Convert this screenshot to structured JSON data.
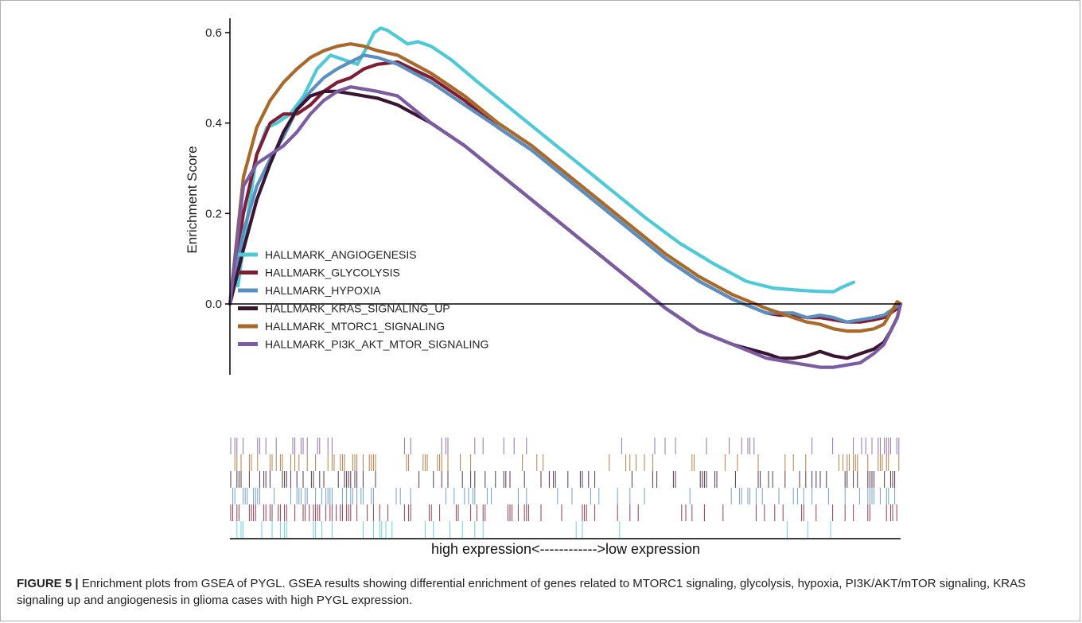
{
  "figure": {
    "caption_label": "FIGURE 5 |",
    "caption_text": " Enrichment plots from GSEA of PYGL. GSEA results showing differential enrichment of genes related to MTORC1 signaling, glycolysis, hypoxia, PI3K/AKT/mTOR signaling, KRAS signaling up and angiogenesis in glioma cases with high PYGL expression."
  },
  "chart_data": {
    "type": "line",
    "ylabel": "Enrichment Score",
    "xlabel": "high expression<------------>low expression",
    "ylim": [
      -0.15,
      0.62
    ],
    "yticks": [
      0.0,
      0.2,
      0.4,
      0.6
    ],
    "ytick_labels": [
      "0.0",
      "0.2",
      "0.4",
      "0.6"
    ],
    "xlim": [
      0,
      1
    ],
    "grid": false,
    "legend_position": "left",
    "series": [
      {
        "name": "HALLMARK_ANGIOGENESIS",
        "color": "#4ec9d6",
        "x": [
          0.012,
          0.025,
          0.04,
          0.055,
          0.07,
          0.09,
          0.11,
          0.13,
          0.15,
          0.17,
          0.19,
          0.205,
          0.215,
          0.225,
          0.235,
          0.25,
          0.265,
          0.28,
          0.3,
          0.33,
          0.37,
          0.42,
          0.47,
          0.52,
          0.57,
          0.62,
          0.67,
          0.72,
          0.77,
          0.81,
          0.85,
          0.875,
          0.9,
          0.91,
          0.93
        ],
        "y": [
          0.04,
          0.18,
          0.33,
          0.39,
          0.4,
          0.42,
          0.46,
          0.52,
          0.55,
          0.54,
          0.53,
          0.57,
          0.6,
          0.61,
          0.605,
          0.59,
          0.575,
          0.58,
          0.57,
          0.54,
          0.49,
          0.43,
          0.37,
          0.31,
          0.25,
          0.19,
          0.135,
          0.09,
          0.05,
          0.035,
          0.03,
          0.028,
          0.027,
          0.035,
          0.048
        ]
      },
      {
        "name": "HALLMARK_GLYCOLYSIS",
        "color": "#7f1d34",
        "x": [
          0.0,
          0.02,
          0.04,
          0.06,
          0.08,
          0.1,
          0.12,
          0.14,
          0.16,
          0.18,
          0.2,
          0.22,
          0.25,
          0.3,
          0.35,
          0.4,
          0.45,
          0.5,
          0.55,
          0.6,
          0.65,
          0.7,
          0.75,
          0.8,
          0.82,
          0.84,
          0.86,
          0.88,
          0.9,
          0.92,
          0.94,
          0.96,
          0.975,
          0.985,
          0.995,
          1.0
        ],
        "y": [
          0.0,
          0.2,
          0.33,
          0.4,
          0.42,
          0.42,
          0.44,
          0.47,
          0.49,
          0.5,
          0.52,
          0.53,
          0.535,
          0.5,
          0.45,
          0.39,
          0.34,
          0.28,
          0.22,
          0.16,
          0.1,
          0.05,
          0.01,
          -0.02,
          -0.025,
          -0.025,
          -0.03,
          -0.03,
          -0.035,
          -0.04,
          -0.04,
          -0.035,
          -0.03,
          -0.02,
          -0.01,
          0.0
        ]
      },
      {
        "name": "HALLMARK_HYPOXIA",
        "color": "#5a8fbf",
        "x": [
          0.0,
          0.02,
          0.04,
          0.06,
          0.08,
          0.1,
          0.12,
          0.14,
          0.16,
          0.18,
          0.2,
          0.22,
          0.25,
          0.3,
          0.35,
          0.4,
          0.45,
          0.5,
          0.55,
          0.6,
          0.65,
          0.7,
          0.75,
          0.8,
          0.82,
          0.84,
          0.86,
          0.88,
          0.9,
          0.92,
          0.94,
          0.96,
          0.975,
          0.985,
          0.995,
          1.0
        ],
        "y": [
          0.0,
          0.16,
          0.26,
          0.32,
          0.37,
          0.43,
          0.47,
          0.5,
          0.52,
          0.535,
          0.55,
          0.545,
          0.53,
          0.49,
          0.44,
          0.39,
          0.34,
          0.28,
          0.22,
          0.16,
          0.1,
          0.05,
          0.01,
          -0.02,
          -0.02,
          -0.02,
          -0.03,
          -0.025,
          -0.03,
          -0.04,
          -0.035,
          -0.03,
          -0.025,
          -0.015,
          -0.005,
          0.0
        ]
      },
      {
        "name": "HALLMARK_KRAS_SIGNALING_UP",
        "color": "#3a1530",
        "x": [
          0.0,
          0.02,
          0.04,
          0.06,
          0.08,
          0.1,
          0.12,
          0.14,
          0.16,
          0.18,
          0.2,
          0.22,
          0.25,
          0.3,
          0.35,
          0.4,
          0.45,
          0.5,
          0.55,
          0.6,
          0.65,
          0.7,
          0.75,
          0.8,
          0.82,
          0.84,
          0.86,
          0.88,
          0.9,
          0.92,
          0.94,
          0.96,
          0.975,
          0.985,
          0.995,
          1.0
        ],
        "y": [
          0.0,
          0.12,
          0.23,
          0.31,
          0.38,
          0.43,
          0.46,
          0.47,
          0.47,
          0.465,
          0.46,
          0.455,
          0.44,
          0.4,
          0.35,
          0.29,
          0.23,
          0.17,
          0.11,
          0.05,
          -0.01,
          -0.06,
          -0.09,
          -0.11,
          -0.12,
          -0.12,
          -0.115,
          -0.105,
          -0.115,
          -0.12,
          -0.11,
          -0.1,
          -0.085,
          -0.06,
          -0.03,
          0.0
        ]
      },
      {
        "name": "HALLMARK_MTORC1_SIGNALING",
        "color": "#a8692a",
        "x": [
          0.0,
          0.02,
          0.04,
          0.06,
          0.08,
          0.1,
          0.12,
          0.14,
          0.16,
          0.18,
          0.2,
          0.22,
          0.25,
          0.3,
          0.35,
          0.4,
          0.45,
          0.5,
          0.55,
          0.6,
          0.65,
          0.7,
          0.75,
          0.8,
          0.82,
          0.84,
          0.86,
          0.88,
          0.9,
          0.92,
          0.94,
          0.96,
          0.975,
          0.985,
          0.995,
          1.0
        ],
        "y": [
          0.0,
          0.28,
          0.39,
          0.45,
          0.49,
          0.52,
          0.545,
          0.56,
          0.57,
          0.575,
          0.57,
          0.56,
          0.55,
          0.51,
          0.46,
          0.4,
          0.35,
          0.29,
          0.23,
          0.17,
          0.11,
          0.06,
          0.02,
          -0.01,
          -0.02,
          -0.03,
          -0.04,
          -0.045,
          -0.055,
          -0.06,
          -0.06,
          -0.055,
          -0.045,
          -0.02,
          0.005,
          0.0
        ]
      },
      {
        "name": "HALLMARK_PI3K_AKT_MTOR_SIGNALING",
        "color": "#7b5ca1",
        "x": [
          0.0,
          0.02,
          0.04,
          0.06,
          0.08,
          0.1,
          0.12,
          0.14,
          0.16,
          0.18,
          0.2,
          0.22,
          0.25,
          0.3,
          0.35,
          0.4,
          0.45,
          0.5,
          0.55,
          0.6,
          0.65,
          0.7,
          0.75,
          0.8,
          0.82,
          0.84,
          0.86,
          0.88,
          0.9,
          0.92,
          0.94,
          0.96,
          0.975,
          0.985,
          0.995,
          1.0
        ],
        "y": [
          0.0,
          0.26,
          0.31,
          0.33,
          0.35,
          0.38,
          0.42,
          0.45,
          0.47,
          0.48,
          0.475,
          0.47,
          0.46,
          0.4,
          0.35,
          0.29,
          0.23,
          0.17,
          0.11,
          0.05,
          -0.01,
          -0.06,
          -0.09,
          -0.12,
          -0.125,
          -0.13,
          -0.135,
          -0.14,
          -0.14,
          -0.135,
          -0.13,
          -0.11,
          -0.09,
          -0.06,
          -0.03,
          0.0
        ]
      }
    ],
    "hit_tracks": [
      {
        "name": "HALLMARK_PI3K_AKT_MTOR_SIGNALING",
        "color": "#7b5ca1",
        "density": [
          0.9,
          0.7,
          0.6,
          0.3,
          0.2,
          0.2,
          0.15,
          0.1,
          0.1,
          0.15,
          0.2,
          0.1,
          0.1,
          0.05,
          0.15,
          0.2,
          0.2,
          0.3,
          0.5,
          0.8
        ]
      },
      {
        "name": "HALLMARK_MTORC1_SIGNALING",
        "color": "#a8692a",
        "density": [
          1.0,
          1.0,
          0.9,
          0.7,
          0.5,
          0.4,
          0.3,
          0.3,
          0.3,
          0.3,
          0.3,
          0.25,
          0.25,
          0.2,
          0.2,
          0.25,
          0.3,
          0.4,
          0.5,
          0.9
        ]
      },
      {
        "name": "HALLMARK_KRAS_SIGNALING_UP",
        "color": "#3a1530",
        "density": [
          0.9,
          0.8,
          0.7,
          0.6,
          0.4,
          0.4,
          0.3,
          0.3,
          0.3,
          0.25,
          0.3,
          0.25,
          0.2,
          0.2,
          0.25,
          0.3,
          0.35,
          0.5,
          0.6,
          0.9
        ]
      },
      {
        "name": "HALLMARK_HYPOXIA",
        "color": "#5a8fbf",
        "density": [
          1.0,
          0.9,
          0.8,
          0.6,
          0.5,
          0.4,
          0.35,
          0.3,
          0.3,
          0.3,
          0.3,
          0.25,
          0.2,
          0.25,
          0.25,
          0.3,
          0.35,
          0.4,
          0.5,
          0.7
        ]
      },
      {
        "name": "HALLMARK_GLYCOLYSIS",
        "color": "#7f1d34",
        "density": [
          1.0,
          1.0,
          0.9,
          0.7,
          0.6,
          0.5,
          0.4,
          0.35,
          0.35,
          0.35,
          0.35,
          0.3,
          0.25,
          0.3,
          0.3,
          0.3,
          0.35,
          0.45,
          0.55,
          0.8
        ]
      },
      {
        "name": "HALLMARK_ANGIOGENESIS",
        "color": "#4ec9d6",
        "density": [
          0.7,
          0.5,
          0.6,
          0.4,
          0.2,
          0.1,
          0.25,
          0.2,
          0.05,
          0.05,
          0.05,
          0.02,
          0.02,
          0.02,
          0.0,
          0.05,
          0.1,
          0.15,
          0.1,
          0.0
        ]
      }
    ]
  }
}
